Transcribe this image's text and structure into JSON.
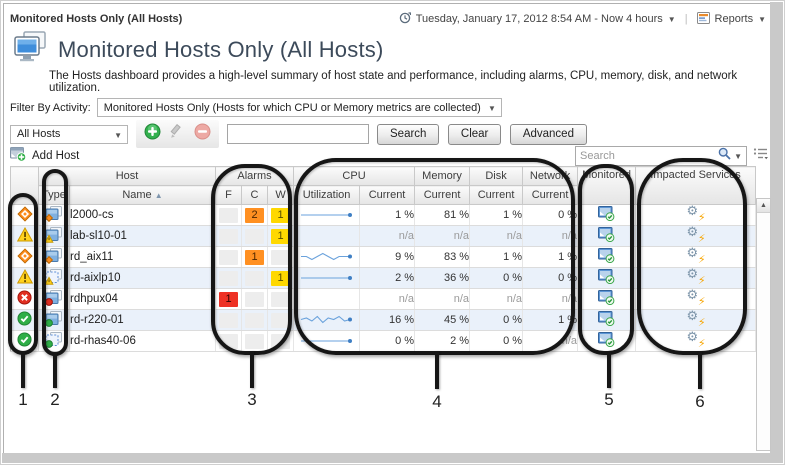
{
  "topbar": {
    "breadcrumb": "Monitored Hosts Only (All Hosts)",
    "time_range": "Tuesday, January 17, 2012 8:54 AM - Now 4 hours",
    "reports_label": "Reports"
  },
  "header": {
    "title": "Monitored Hosts Only (All Hosts)",
    "description": "The Hosts dashboard provides a high-level summary of host state and performance, including alarms, CPU, memory, disk, and network utilization."
  },
  "filter_bar": {
    "label": "Filter By Activity:",
    "value": "Monitored Hosts Only (Hosts for which CPU or Memory metrics are collected)"
  },
  "scope_bar": {
    "scope_value": "All Hosts",
    "search_input_value": "",
    "search_button": "Search",
    "clear_button": "Clear",
    "advanced_button": "Advanced"
  },
  "table_toolbar": {
    "add_host_label": "Add Host",
    "search_placeholder": "Search"
  },
  "icons": {
    "time_icon": "clock",
    "reports_icon": "report-document",
    "add_icon": "green-plus-circle",
    "edit_icon": "pencil",
    "remove_icon": "red-minus-circle",
    "search_icon": "magnifier",
    "customizer_icon": "column-list",
    "monitored_icon": "monitor-with-green-check",
    "impacted_icon": "gear-with-lightning"
  },
  "table": {
    "group_headers": {
      "host": "Host",
      "alarms": "Alarms",
      "cpu": "CPU",
      "memory": "Memory",
      "disk": "Disk",
      "network": "Network",
      "monitored": "Monitored",
      "impacted_services": "Impacted Services"
    },
    "sub_headers": {
      "type": "Type",
      "name": "Name",
      "fatal": "F",
      "critical": "C",
      "warning": "W",
      "utilization": "Utilization",
      "current": "Current"
    },
    "sort": {
      "column": "Name",
      "direction": "ascending"
    },
    "na_text": "n/a",
    "rows": [
      {
        "name": "l2000-cs",
        "severity": "critical",
        "host_kind": "physical",
        "alarms": {
          "fatal": null,
          "critical": 2,
          "warning": 1
        },
        "cpu_sparkline": [
          1,
          1,
          1,
          1,
          1,
          1,
          1,
          1,
          1,
          1
        ],
        "cpu_current": "1 %",
        "memory_current": "81 %",
        "disk_current": "1 %",
        "network_current": "0 %",
        "monitored": true,
        "impacted_services": true
      },
      {
        "name": "lab-sl10-01",
        "severity": "warning",
        "host_kind": "physical",
        "alarms": {
          "fatal": null,
          "critical": null,
          "warning": 1
        },
        "cpu_sparkline": null,
        "cpu_current": "n/a",
        "memory_current": "n/a",
        "disk_current": "n/a",
        "network_current": "n/a",
        "monitored": true,
        "impacted_services": true
      },
      {
        "name": "rd_aix11",
        "severity": "critical",
        "host_kind": "physical",
        "alarms": {
          "fatal": null,
          "critical": 1,
          "warning": null
        },
        "cpu_sparkline": [
          9,
          9,
          8,
          9,
          10,
          9,
          8,
          9,
          9,
          9
        ],
        "cpu_current": "9 %",
        "memory_current": "83 %",
        "disk_current": "1 %",
        "network_current": "1 %",
        "monitored": true,
        "impacted_services": true
      },
      {
        "name": "rd-aixlp10",
        "severity": "warning",
        "host_kind": "virtual",
        "alarms": {
          "fatal": null,
          "critical": null,
          "warning": 1
        },
        "cpu_sparkline": [
          2,
          2,
          2,
          2,
          2,
          2,
          2,
          2,
          2,
          2
        ],
        "cpu_current": "2 %",
        "memory_current": "36 %",
        "disk_current": "0 %",
        "network_current": "0 %",
        "monitored": true,
        "impacted_services": true
      },
      {
        "name": "rdhpux04",
        "severity": "fatal",
        "host_kind": "physical",
        "alarms": {
          "fatal": 1,
          "critical": null,
          "warning": null
        },
        "cpu_sparkline": null,
        "cpu_current": "n/a",
        "memory_current": "n/a",
        "disk_current": "n/a",
        "network_current": "n/a",
        "monitored": true,
        "impacted_services": true
      },
      {
        "name": "rd-r220-01",
        "severity": "normal",
        "host_kind": "physical",
        "alarms": {
          "fatal": null,
          "critical": null,
          "warning": null
        },
        "cpu_sparkline": [
          16,
          17,
          15,
          18,
          14,
          17,
          16,
          18,
          15,
          16
        ],
        "cpu_current": "16 %",
        "memory_current": "45 %",
        "disk_current": "0 %",
        "network_current": "1 %",
        "monitored": true,
        "impacted_services": true
      },
      {
        "name": "rd-rhas40-06",
        "severity": "normal",
        "host_kind": "virtual",
        "alarms": {
          "fatal": null,
          "critical": null,
          "warning": null
        },
        "cpu_sparkline": [
          0,
          0,
          0,
          0,
          0,
          0,
          0,
          0,
          0,
          0
        ],
        "cpu_current": "0 %",
        "memory_current": "2 %",
        "disk_current": "0 %",
        "network_current": "n/a",
        "monitored": true,
        "impacted_services": true
      }
    ]
  },
  "callouts": {
    "numbers": [
      "1",
      "2",
      "3",
      "4",
      "5",
      "6"
    ]
  },
  "colors": {
    "critical": "#ff8d1e",
    "warning": "#ffd800",
    "fatal": "#ee3124",
    "normal": "#2fae47",
    "sparkline": "#6aa2dc",
    "row_alt": "#eaf1fa"
  }
}
